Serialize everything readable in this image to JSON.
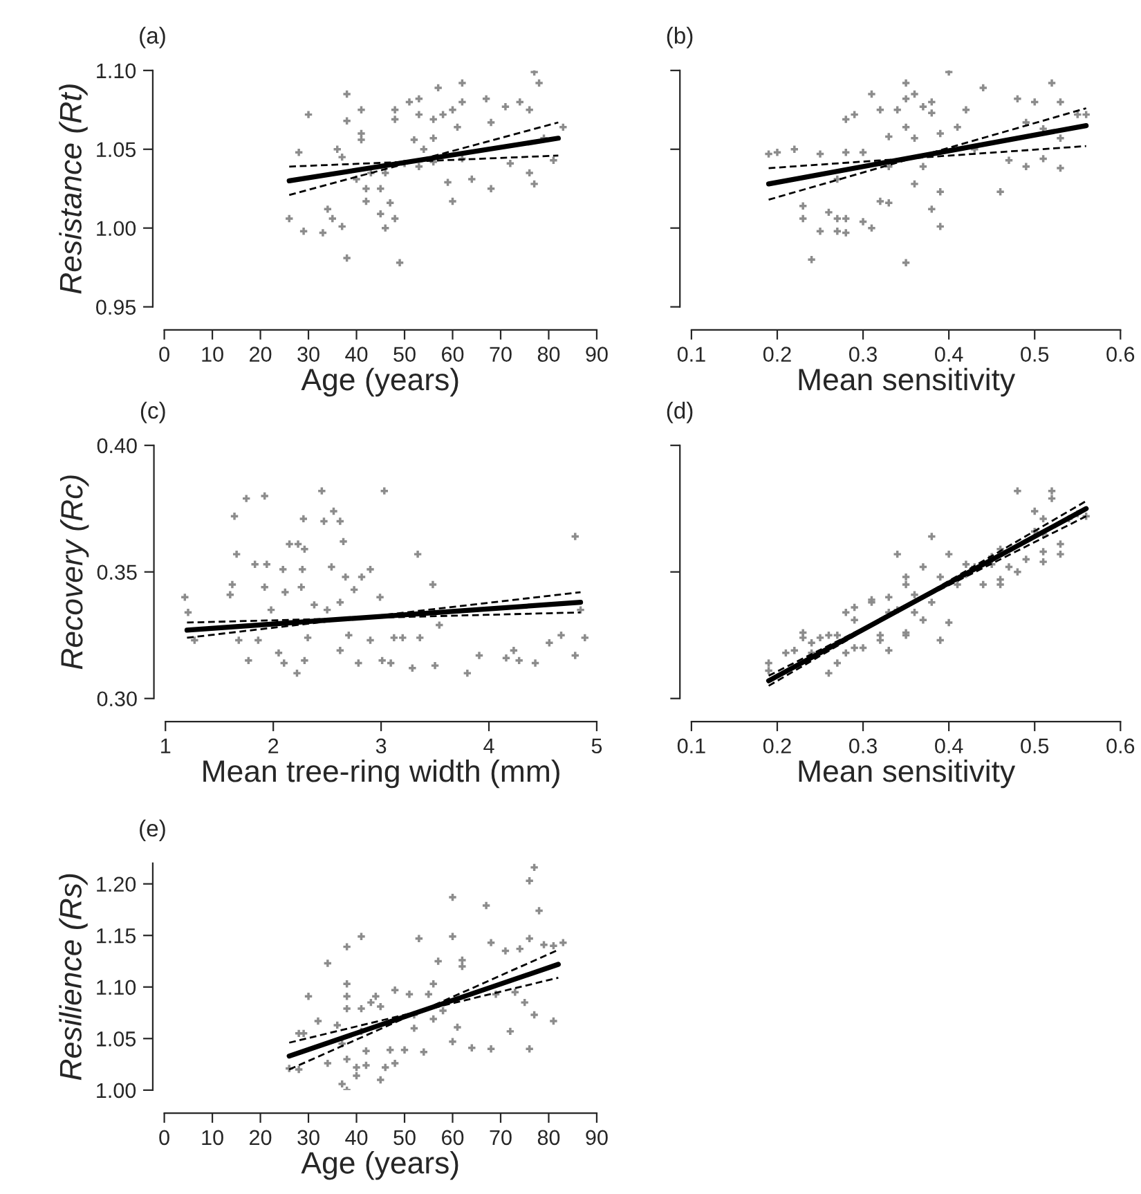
{
  "chart_data": [
    {
      "type": "scatter",
      "title": "(a)",
      "xlabel": "Age (years)",
      "ylabel": "Resistance (Rt)",
      "xlim": [
        0,
        90
      ],
      "ylim": [
        0.95,
        1.1
      ],
      "xticks": [
        0,
        10,
        20,
        30,
        40,
        50,
        60,
        70,
        80,
        90
      ],
      "yticks": [
        {
          "value": 0.95,
          "label": "0.95"
        },
        {
          "value": 1.0,
          "label": "1.00"
        },
        {
          "value": 1.05,
          "label": "1.05"
        },
        {
          "value": 1.1,
          "label": "1.10"
        }
      ],
      "series": [
        {
          "type": "scatter",
          "color": "#8c8c8c",
          "marker": "cross",
          "x": [
            26,
            28,
            29,
            30,
            33,
            34,
            35,
            38,
            38,
            38,
            37,
            36,
            37,
            41,
            41,
            41,
            42,
            40,
            42,
            45,
            45,
            46,
            47,
            48,
            48,
            48,
            49,
            51,
            53,
            53,
            52,
            54,
            56,
            56,
            57,
            58,
            60,
            61,
            62,
            62,
            59,
            60,
            62,
            64,
            67,
            68,
            68,
            71,
            72,
            74,
            76,
            76,
            77,
            77,
            78,
            79,
            81,
            83,
            50,
            46,
            43,
            53,
            56
          ],
          "values": [
            1.006,
            1.048,
            0.998,
            1.072,
            0.997,
            1.012,
            1.006,
            1.085,
            1.068,
            0.981,
            1.001,
            1.05,
            1.045,
            1.075,
            1.06,
            1.056,
            1.017,
            1.031,
            1.025,
            1.025,
            1.009,
            1.0,
            1.016,
            1.006,
            1.075,
            1.069,
            0.978,
            1.08,
            1.082,
            1.072,
            1.056,
            1.05,
            1.069,
            1.057,
            1.089,
            1.072,
            1.075,
            1.064,
            1.092,
            1.08,
            1.029,
            1.017,
            1.044,
            1.031,
            1.082,
            1.067,
            1.025,
            1.077,
            1.041,
            1.08,
            1.075,
            1.035,
            1.028,
            1.099,
            1.092,
            1.057,
            1.043,
            1.064,
            1.041,
            1.035,
            1.035,
            1.039,
            1.042
          ]
        },
        {
          "type": "line",
          "color": "#000000",
          "x": [
            26,
            82
          ],
          "values": [
            1.03,
            1.057
          ]
        },
        {
          "type": "line",
          "color": "#000000",
          "line_style": "dashed",
          "x": [
            26,
            82
          ],
          "values": [
            1.021,
            1.067
          ]
        },
        {
          "type": "line",
          "color": "#000000",
          "line_style": "dashed",
          "x": [
            26,
            82
          ],
          "values": [
            1.039,
            1.046
          ]
        }
      ]
    },
    {
      "type": "scatter",
      "title": "(b)",
      "xlabel": "Mean sensitivity",
      "xlim": [
        0.1,
        0.6
      ],
      "ylim": [
        0.95,
        1.1
      ],
      "xticks": [
        0.1,
        0.2,
        0.3,
        0.4,
        0.5,
        0.6
      ],
      "yticks": [
        0.95,
        1.0,
        1.05,
        1.1
      ],
      "tick_labels": "x",
      "series": [
        {
          "type": "scatter",
          "color": "#8c8c8c",
          "marker": "cross",
          "x": [
            0.19,
            0.2,
            0.22,
            0.23,
            0.23,
            0.24,
            0.25,
            0.25,
            0.26,
            0.27,
            0.27,
            0.28,
            0.28,
            0.28,
            0.28,
            0.29,
            0.3,
            0.3,
            0.31,
            0.31,
            0.32,
            0.32,
            0.33,
            0.33,
            0.34,
            0.35,
            0.35,
            0.36,
            0.35,
            0.36,
            0.35,
            0.36,
            0.37,
            0.38,
            0.38,
            0.38,
            0.39,
            0.39,
            0.4,
            0.39,
            0.41,
            0.42,
            0.43,
            0.44,
            0.46,
            0.47,
            0.48,
            0.49,
            0.5,
            0.51,
            0.49,
            0.51,
            0.52,
            0.53,
            0.53,
            0.53,
            0.55,
            0.56,
            0.37,
            0.33,
            0.27
          ],
          "values": [
            1.047,
            1.048,
            1.05,
            1.006,
            1.014,
            0.98,
            0.998,
            1.047,
            1.01,
            1.006,
            0.998,
            1.006,
            0.997,
            1.048,
            1.069,
            1.072,
            1.048,
            1.004,
            1.0,
            1.085,
            1.075,
            1.017,
            1.058,
            1.016,
            1.075,
            1.082,
            1.092,
            1.085,
            1.064,
            1.057,
            0.978,
            1.028,
            1.077,
            1.08,
            1.012,
            1.073,
            1.001,
            1.023,
            1.099,
            1.06,
            1.064,
            1.075,
            1.05,
            1.089,
            1.023,
            1.043,
            1.082,
            1.067,
            1.08,
            1.063,
            1.039,
            1.044,
            1.092,
            1.08,
            1.057,
            1.038,
            1.072,
            1.072,
            1.039,
            1.039,
            1.031
          ]
        },
        {
          "type": "line",
          "color": "#000000",
          "x": [
            0.19,
            0.56
          ],
          "values": [
            1.028,
            1.065
          ]
        },
        {
          "type": "line",
          "color": "#000000",
          "line_style": "dashed",
          "x": [
            0.19,
            0.56
          ],
          "values": [
            1.018,
            1.076
          ]
        },
        {
          "type": "line",
          "color": "#000000",
          "line_style": "dashed",
          "x": [
            0.19,
            0.56
          ],
          "values": [
            1.038,
            1.052
          ]
        }
      ]
    },
    {
      "type": "scatter",
      "title": "(c)",
      "xlabel": "Mean tree-ring width (mm)",
      "ylabel": "Recovery (Rc)",
      "xlim": [
        1,
        5
      ],
      "ylim": [
        0.3,
        0.4
      ],
      "xticks": [
        1,
        2,
        3,
        4,
        5
      ],
      "yticks": [
        {
          "value": 0.3,
          "label": "0.30"
        },
        {
          "value": 0.35,
          "label": "0.35"
        },
        {
          "value": 0.4,
          "label": "0.40"
        }
      ],
      "series": [
        {
          "type": "scatter",
          "color": "#8c8c8c",
          "marker": "cross",
          "x": [
            1.18,
            1.21,
            1.27,
            1.6,
            1.62,
            1.64,
            1.66,
            1.68,
            1.75,
            1.77,
            1.83,
            1.86,
            1.92,
            1.92,
            1.94,
            1.98,
            2.05,
            2.1,
            2.09,
            2.11,
            2.15,
            2.22,
            2.23,
            2.26,
            2.27,
            2.28,
            2.29,
            2.29,
            2.32,
            2.38,
            2.45,
            2.47,
            2.5,
            2.54,
            2.56,
            2.62,
            2.62,
            2.65,
            2.62,
            2.67,
            2.7,
            2.75,
            2.79,
            2.82,
            2.9,
            2.9,
            2.99,
            3.03,
            3.01,
            3.09,
            3.12,
            3.2,
            3.29,
            3.34,
            3.36,
            3.48,
            3.5,
            3.54,
            3.8,
            3.91,
            4.16,
            4.23,
            4.28,
            4.43,
            4.56,
            4.67,
            4.8,
            4.8,
            4.85,
            4.89
          ],
          "values": [
            0.34,
            0.334,
            0.323,
            0.341,
            0.345,
            0.372,
            0.357,
            0.323,
            0.379,
            0.315,
            0.353,
            0.323,
            0.38,
            0.344,
            0.353,
            0.335,
            0.318,
            0.314,
            0.351,
            0.342,
            0.361,
            0.31,
            0.361,
            0.344,
            0.351,
            0.371,
            0.359,
            0.315,
            0.324,
            0.337,
            0.382,
            0.37,
            0.335,
            0.352,
            0.374,
            0.37,
            0.338,
            0.362,
            0.319,
            0.348,
            0.325,
            0.343,
            0.314,
            0.348,
            0.351,
            0.323,
            0.34,
            0.382,
            0.315,
            0.314,
            0.324,
            0.324,
            0.312,
            0.357,
            0.324,
            0.345,
            0.313,
            0.329,
            0.31,
            0.317,
            0.316,
            0.319,
            0.315,
            0.314,
            0.322,
            0.325,
            0.364,
            0.317,
            0.335,
            0.324
          ]
        },
        {
          "type": "line",
          "color": "#000000",
          "x": [
            1.2,
            4.85
          ],
          "values": [
            0.327,
            0.338
          ]
        },
        {
          "type": "line",
          "color": "#000000",
          "line_style": "dashed",
          "x": [
            1.2,
            4.85
          ],
          "values": [
            0.324,
            0.342
          ]
        },
        {
          "type": "line",
          "color": "#000000",
          "line_style": "dashed",
          "x": [
            1.2,
            4.85
          ],
          "values": [
            0.33,
            0.334
          ]
        }
      ]
    },
    {
      "type": "scatter",
      "title": "(d)",
      "xlabel": "Mean sensitivity",
      "xlim": [
        0.1,
        0.6
      ],
      "ylim": [
        0.3,
        0.4
      ],
      "xticks": [
        0.1,
        0.2,
        0.3,
        0.4,
        0.5,
        0.6
      ],
      "yticks": [
        0.3,
        0.35,
        0.4
      ],
      "tick_labels": "x",
      "series": [
        {
          "type": "scatter",
          "color": "#8c8c8c",
          "marker": "cross",
          "x": [
            0.19,
            0.19,
            0.21,
            0.22,
            0.23,
            0.23,
            0.24,
            0.24,
            0.25,
            0.26,
            0.27,
            0.27,
            0.28,
            0.28,
            0.29,
            0.29,
            0.3,
            0.31,
            0.31,
            0.32,
            0.32,
            0.33,
            0.33,
            0.34,
            0.34,
            0.35,
            0.35,
            0.35,
            0.35,
            0.36,
            0.37,
            0.37,
            0.38,
            0.38,
            0.39,
            0.39,
            0.4,
            0.4,
            0.41,
            0.42,
            0.43,
            0.44,
            0.45,
            0.45,
            0.46,
            0.46,
            0.47,
            0.48,
            0.48,
            0.49,
            0.5,
            0.51,
            0.51,
            0.51,
            0.51,
            0.52,
            0.52,
            0.53,
            0.53,
            0.54,
            0.56,
            0.26,
            0.29,
            0.33,
            0.36,
            0.42,
            0.46,
            0.5,
            0.55
          ],
          "values": [
            0.314,
            0.311,
            0.318,
            0.319,
            0.324,
            0.326,
            0.318,
            0.322,
            0.324,
            0.31,
            0.314,
            0.325,
            0.318,
            0.334,
            0.32,
            0.336,
            0.32,
            0.339,
            0.338,
            0.323,
            0.325,
            0.319,
            0.34,
            0.357,
            0.335,
            0.326,
            0.325,
            0.348,
            0.345,
            0.334,
            0.352,
            0.331,
            0.364,
            0.338,
            0.348,
            0.323,
            0.357,
            0.33,
            0.345,
            0.353,
            0.352,
            0.345,
            0.356,
            0.353,
            0.345,
            0.347,
            0.352,
            0.382,
            0.35,
            0.355,
            0.374,
            0.365,
            0.358,
            0.371,
            0.354,
            0.382,
            0.379,
            0.361,
            0.357,
            0.371,
            0.372,
            0.325,
            0.331,
            0.334,
            0.341,
            0.349,
            0.359,
            0.366,
            0.373
          ]
        },
        {
          "type": "line",
          "color": "#000000",
          "x": [
            0.19,
            0.56
          ],
          "values": [
            0.307,
            0.375
          ]
        },
        {
          "type": "line",
          "color": "#000000",
          "line_style": "dashed",
          "x": [
            0.19,
            0.56
          ],
          "values": [
            0.305,
            0.378
          ]
        },
        {
          "type": "line",
          "color": "#000000",
          "line_style": "dashed",
          "x": [
            0.19,
            0.56
          ],
          "values": [
            0.309,
            0.372
          ]
        }
      ]
    },
    {
      "type": "scatter",
      "title": "(e)",
      "xlabel": "Age (years)",
      "ylabel": "Resilience (Rs)",
      "xlim": [
        0,
        90
      ],
      "ylim": [
        1.0,
        1.22
      ],
      "xticks": [
        0,
        10,
        20,
        30,
        40,
        50,
        60,
        70,
        80,
        90
      ],
      "yticks": [
        {
          "value": 1.0,
          "label": "1.00"
        },
        {
          "value": 1.05,
          "label": "1.05"
        },
        {
          "value": 1.1,
          "label": "1.10"
        },
        {
          "value": 1.15,
          "label": "1.15"
        },
        {
          "value": 1.2,
          "label": "1.20"
        }
      ],
      "series": [
        {
          "type": "scatter",
          "color": "#8c8c8c",
          "marker": "cross",
          "x": [
            26,
            28,
            28,
            29,
            30,
            32,
            34,
            34,
            36,
            37,
            37,
            38,
            38,
            38,
            38,
            38,
            38,
            40,
            40,
            41,
            41,
            41,
            42,
            42,
            43,
            44,
            45,
            45,
            46,
            47,
            48,
            48,
            50,
            51,
            52,
            53,
            54,
            56,
            56,
            57,
            58,
            60,
            60,
            60,
            61,
            62,
            62,
            64,
            67,
            68,
            68,
            69,
            71,
            72,
            73,
            74,
            75,
            76,
            76,
            76,
            77,
            77,
            78,
            79,
            81,
            81,
            83,
            52,
            55
          ],
          "values": [
            1.021,
            1.02,
            1.055,
            1.055,
            1.091,
            1.067,
            1.123,
            1.026,
            1.063,
            1.045,
            1.006,
            1.0,
            1.139,
            1.103,
            1.091,
            1.079,
            1.03,
            1.022,
            1.014,
            1.149,
            1.079,
            1.057,
            1.038,
            1.024,
            1.085,
            1.091,
            1.081,
            1.01,
            1.022,
            1.039,
            1.097,
            1.026,
            1.039,
            1.093,
            1.06,
            1.147,
            1.037,
            1.103,
            1.069,
            1.125,
            1.077,
            1.187,
            1.149,
            1.047,
            1.061,
            1.126,
            1.12,
            1.041,
            1.179,
            1.04,
            1.143,
            1.093,
            1.135,
            1.057,
            1.095,
            1.137,
            1.085,
            1.203,
            1.147,
            1.04,
            1.216,
            1.073,
            1.174,
            1.141,
            1.14,
            1.067,
            1.143,
            1.073,
            1.093
          ]
        },
        {
          "type": "line",
          "color": "#000000",
          "x": [
            26,
            82
          ],
          "values": [
            1.033,
            1.122
          ]
        },
        {
          "type": "line",
          "color": "#000000",
          "line_style": "dashed",
          "x": [
            26,
            82
          ],
          "values": [
            1.02,
            1.136
          ]
        },
        {
          "type": "line",
          "color": "#000000",
          "line_style": "dashed",
          "x": [
            26,
            82
          ],
          "values": [
            1.046,
            1.109
          ]
        }
      ]
    }
  ]
}
